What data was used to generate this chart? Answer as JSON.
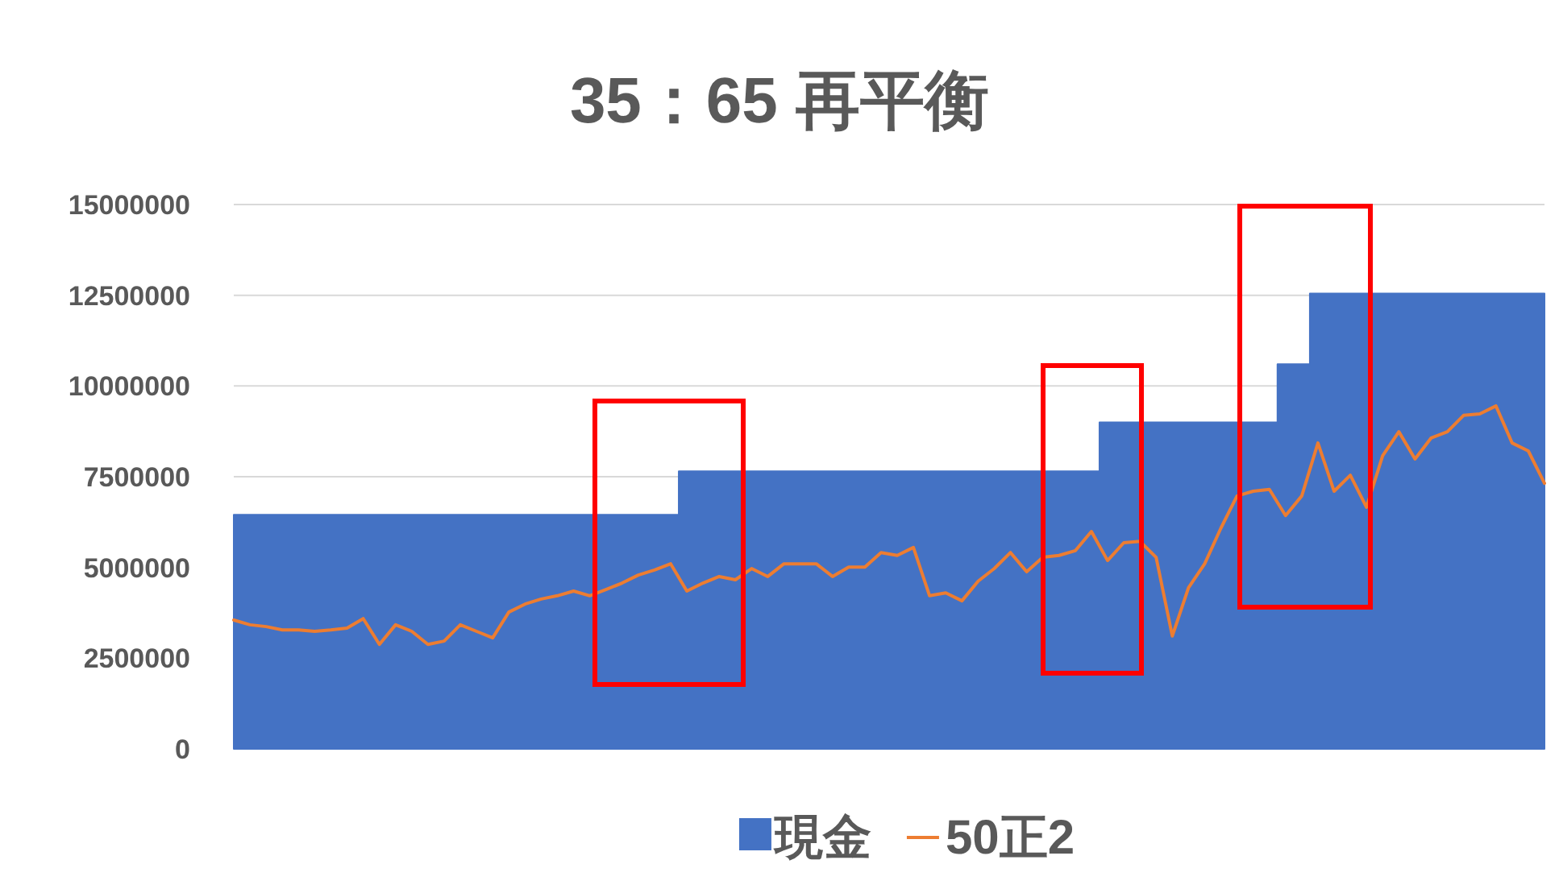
{
  "chart_data": {
    "type": "area",
    "title": "35：65 再平衡",
    "categories": [
      null,
      null,
      null,
      null,
      null,
      null,
      null,
      null,
      null,
      null,
      null,
      null,
      null,
      null,
      null,
      null,
      null,
      null,
      null,
      null,
      null,
      null,
      null,
      null,
      null,
      null,
      null,
      null,
      null,
      null,
      null,
      null,
      null,
      null,
      null,
      null,
      null,
      null,
      null,
      null,
      null,
      null,
      null,
      null,
      null,
      null,
      null,
      null,
      null,
      null,
      null,
      null,
      null,
      null,
      null,
      null,
      null,
      null,
      null,
      null,
      null,
      null,
      null,
      null,
      null,
      null,
      null,
      null,
      null,
      null,
      null,
      null,
      null,
      null,
      null,
      null,
      null,
      null,
      null,
      null,
      null,
      null
    ],
    "series": [
      {
        "name": "現金",
        "color": "#4472c4",
        "values": [
          6450000,
          6450000,
          6450000,
          6450000,
          6450000,
          6450000,
          6450000,
          6450000,
          6450000,
          6450000,
          6450000,
          6450000,
          6450000,
          6450000,
          6450000,
          6450000,
          6450000,
          6450000,
          6450000,
          6450000,
          6450000,
          6450000,
          6450000,
          6450000,
          6450000,
          6450000,
          6450000,
          6450000,
          7650000,
          7650000,
          7650000,
          7650000,
          7650000,
          7650000,
          7650000,
          7650000,
          7650000,
          7650000,
          7650000,
          7650000,
          7650000,
          7650000,
          7650000,
          7650000,
          7650000,
          7650000,
          7650000,
          7650000,
          7650000,
          7650000,
          7650000,
          7650000,
          7650000,
          7650000,
          9000000,
          9000000,
          9000000,
          9000000,
          9000000,
          9000000,
          9000000,
          9000000,
          9000000,
          9000000,
          9000000,
          10600000,
          10600000,
          12550000,
          12550000,
          12550000,
          12550000,
          12550000,
          12550000,
          12550000,
          12550000,
          12550000,
          12550000,
          12550000,
          12550000,
          12550000,
          12550000,
          12550000
        ]
      },
      {
        "name": "50正2",
        "type": "line",
        "color": "#ed7d31",
        "values": [
          3550000,
          3420000,
          3370000,
          3280000,
          3280000,
          3240000,
          3280000,
          3330000,
          3590000,
          2880000,
          3420000,
          3240000,
          2880000,
          2970000,
          3420000,
          3240000,
          3060000,
          3770000,
          3990000,
          4130000,
          4220000,
          4350000,
          4220000,
          4390000,
          4570000,
          4790000,
          4930000,
          5100000,
          4350000,
          4570000,
          4750000,
          4660000,
          4970000,
          4750000,
          5100000,
          5100000,
          5100000,
          4750000,
          5010000,
          5010000,
          5410000,
          5330000,
          5550000,
          4220000,
          4300000,
          4080000,
          4620000,
          4970000,
          5410000,
          4880000,
          5280000,
          5330000,
          5460000,
          5990000,
          5190000,
          5680000,
          5720000,
          5280000,
          3110000,
          4440000,
          5100000,
          6080000,
          6970000,
          7100000,
          7150000,
          6430000,
          6970000,
          8430000,
          7100000,
          7540000,
          6660000,
          8080000,
          8740000,
          7990000,
          8570000,
          8740000,
          9190000,
          9230000,
          9450000,
          8430000,
          8210000,
          7320000
        ]
      }
    ],
    "ylim": [
      0,
      15000000
    ],
    "yticks": [
      0,
      2500000,
      5000000,
      7500000,
      10000000,
      12500000,
      15000000
    ],
    "grid": "y",
    "legend": "bottom",
    "tick_labels": "y"
  }
}
